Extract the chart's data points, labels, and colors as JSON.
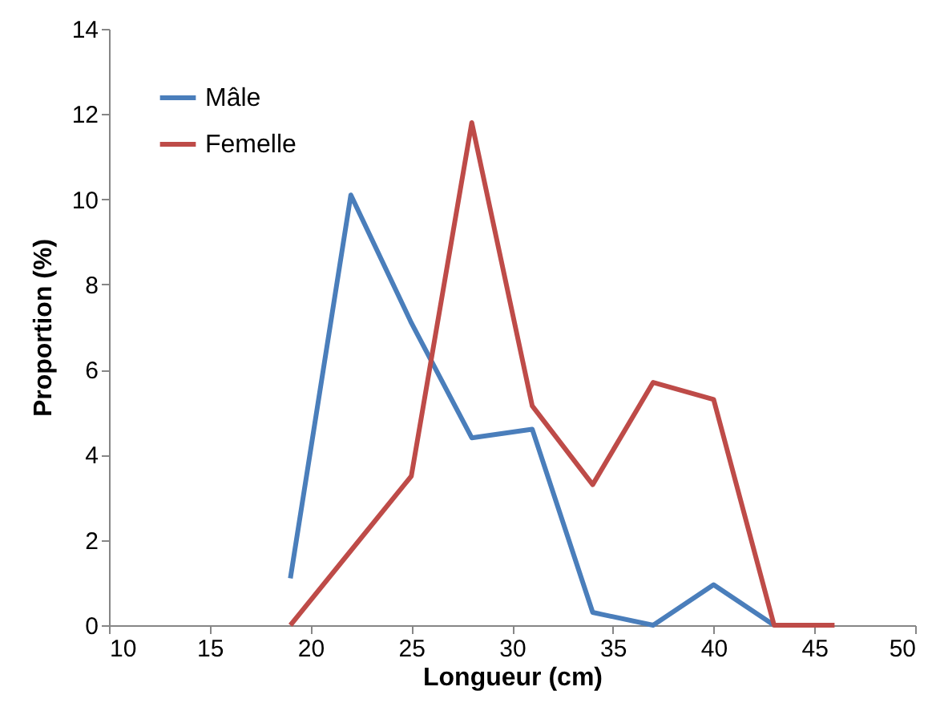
{
  "chart_data": {
    "type": "line",
    "xlabel": "Longueur (cm)",
    "ylabel": "Proportion (%)",
    "x": [
      19,
      22,
      25,
      28,
      31,
      34,
      37,
      40,
      43,
      46
    ],
    "series": [
      {
        "name": "Mâle",
        "color": "#4a7ebb",
        "values": [
          1.1,
          10.1,
          7.1,
          4.4,
          4.6,
          0.3,
          0,
          0.95,
          0,
          null
        ]
      },
      {
        "name": "Femelle",
        "color": "#be4b48",
        "values": [
          0,
          1.75,
          3.5,
          11.8,
          5.15,
          3.3,
          5.7,
          5.3,
          0,
          0
        ]
      }
    ],
    "xlim": [
      10,
      50
    ],
    "xticks": [
      10,
      15,
      20,
      25,
      30,
      35,
      40,
      45,
      50
    ],
    "ylim": [
      0,
      14
    ],
    "yticks": [
      0,
      2,
      4,
      6,
      8,
      10,
      12,
      14
    ],
    "grid": false,
    "legend": "top left",
    "marker": "none",
    "line_style": "solid"
  }
}
